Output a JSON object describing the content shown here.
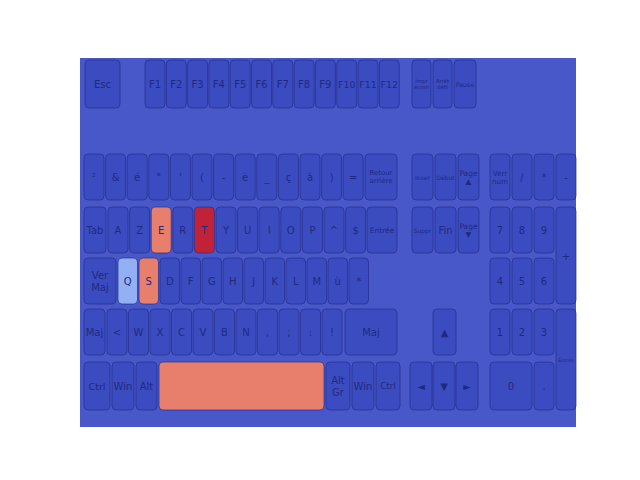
{
  "chart_data": {
    "type": "heatmap",
    "color_range": [
      0,
      1
    ],
    "rows": [
      {
        "keys": [
          {
            "label": "Esc",
            "value": 0
          },
          {
            "label": "F1",
            "value": 0
          },
          {
            "label": "F2",
            "value": 0
          },
          {
            "label": "F3",
            "value": 0
          },
          {
            "label": "F4",
            "value": 0
          },
          {
            "label": "F5",
            "value": 0
          },
          {
            "label": "F6",
            "value": 0
          },
          {
            "label": "F7",
            "value": 0
          },
          {
            "label": "F8",
            "value": 0
          },
          {
            "label": "F9",
            "value": 0
          },
          {
            "label": "F10",
            "value": 0
          },
          {
            "label": "F11",
            "value": 0
          },
          {
            "label": "F12",
            "value": 0
          },
          {
            "label": "Impr écran",
            "value": 0
          },
          {
            "label": "Arrêt défil",
            "value": 0
          },
          {
            "label": "Pause",
            "value": 0
          }
        ]
      },
      {
        "keys": [
          {
            "label": "²",
            "value": 0
          },
          {
            "label": "&",
            "value": 0
          },
          {
            "label": "é",
            "value": 0
          },
          {
            "label": "\"",
            "value": 0
          },
          {
            "label": "'",
            "value": 0
          },
          {
            "label": "(",
            "value": 0
          },
          {
            "label": "-",
            "value": 0
          },
          {
            "label": "è",
            "value": 0
          },
          {
            "label": "_",
            "value": 0
          },
          {
            "label": "ç",
            "value": 0
          },
          {
            "label": "à",
            "value": 0
          },
          {
            "label": ")",
            "value": 0
          },
          {
            "label": "=",
            "value": 0
          },
          {
            "label": "Retour arrière",
            "value": 0
          }
        ]
      },
      {
        "keys": [
          {
            "label": "Tab",
            "value": 0
          },
          {
            "label": "A",
            "value": 0
          },
          {
            "label": "Z",
            "value": 0
          },
          {
            "label": "E",
            "value": 0.8
          },
          {
            "label": "R",
            "value": 0
          },
          {
            "label": "T",
            "value": 0.95
          },
          {
            "label": "Y",
            "value": 0
          },
          {
            "label": "U",
            "value": 0
          },
          {
            "label": "I",
            "value": 0
          },
          {
            "label": "O",
            "value": 0
          },
          {
            "label": "P",
            "value": 0
          },
          {
            "label": "^",
            "value": 0
          },
          {
            "label": "$",
            "value": 0
          },
          {
            "label": "Entrée",
            "value": 0
          }
        ]
      },
      {
        "keys": [
          {
            "label": "Ver Maj",
            "value": 0
          },
          {
            "label": "Q",
            "value": 0.3
          },
          {
            "label": "S",
            "value": 0.8
          },
          {
            "label": "D",
            "value": 0
          },
          {
            "label": "F",
            "value": 0
          },
          {
            "label": "G",
            "value": 0
          },
          {
            "label": "H",
            "value": 0
          },
          {
            "label": "J",
            "value": 0
          },
          {
            "label": "K",
            "value": 0
          },
          {
            "label": "L",
            "value": 0
          },
          {
            "label": "M",
            "value": 0
          },
          {
            "label": "ù",
            "value": 0
          },
          {
            "label": "*",
            "value": 0
          }
        ]
      },
      {
        "keys": [
          {
            "label": "Maj",
            "value": 0
          },
          {
            "label": "<",
            "value": 0
          },
          {
            "label": "W",
            "value": 0
          },
          {
            "label": "X",
            "value": 0
          },
          {
            "label": "C",
            "value": 0
          },
          {
            "label": "V",
            "value": 0
          },
          {
            "label": "B",
            "value": 0
          },
          {
            "label": "N",
            "value": 0
          },
          {
            "label": ",",
            "value": 0
          },
          {
            "label": ";",
            "value": 0
          },
          {
            "label": ":",
            "value": 0
          },
          {
            "label": "!",
            "value": 0
          },
          {
            "label": "Maj",
            "value": 0
          }
        ]
      },
      {
        "keys": [
          {
            "label": "Ctrl",
            "value": 0
          },
          {
            "label": "Win",
            "value": 0
          },
          {
            "label": "Alt",
            "value": 0
          },
          {
            "label": null,
            "value": 0.8
          },
          {
            "label": "Alt Gr",
            "value": 0
          },
          {
            "label": "Win",
            "value": 0
          },
          {
            "label": "Ctrl",
            "value": 0
          }
        ]
      },
      {
        "keys": [
          {
            "label": "Inser",
            "value": 0
          },
          {
            "label": "Début",
            "value": 0
          },
          {
            "label": "Page ▲",
            "value": 0
          }
        ]
      },
      {
        "keys": [
          {
            "label": "Suppr",
            "value": 0
          },
          {
            "label": "Fin",
            "value": 0
          },
          {
            "label": "Page ▼",
            "value": 0
          }
        ]
      },
      {
        "keys": [
          {
            "label": "▲",
            "value": 0
          }
        ]
      },
      {
        "keys": [
          {
            "label": "◄",
            "value": 0
          },
          {
            "label": "▼",
            "value": 0
          },
          {
            "label": "►",
            "value": 0
          }
        ]
      },
      {
        "keys": [
          {
            "label": "Verr num",
            "value": 0
          },
          {
            "label": "/",
            "value": 0
          },
          {
            "label": "*",
            "value": 0
          },
          {
            "label": "-",
            "value": 0
          }
        ]
      },
      {
        "keys": [
          {
            "label": "7",
            "value": 0
          },
          {
            "label": "8",
            "value": 0
          },
          {
            "label": "9",
            "value": 0
          },
          {
            "label": "+",
            "value": 0
          }
        ]
      },
      {
        "keys": [
          {
            "label": "4",
            "value": 0
          },
          {
            "label": "5",
            "value": 0
          },
          {
            "label": "6",
            "value": 0
          }
        ]
      },
      {
        "keys": [
          {
            "label": "1",
            "value": 0
          },
          {
            "label": "2",
            "value": 0
          },
          {
            "label": "3",
            "value": 0
          },
          {
            "label": "Entrée",
            "value": 0
          }
        ]
      },
      {
        "keys": [
          {
            "label": "0",
            "value": 0
          },
          {
            "label": ".",
            "value": 0
          }
        ]
      }
    ]
  }
}
